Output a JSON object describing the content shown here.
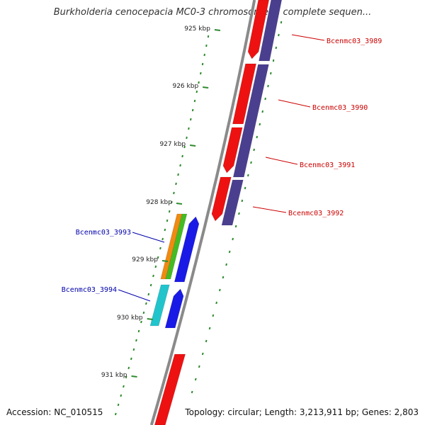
{
  "title": "Burkholderia cenocepacia MC0-3 chromosome 2, complete sequen...",
  "footer": {
    "accession": "Accession: NC_010515",
    "stats": "Topology: circular; Length: 3,213,911 bp; Genes: 2,803"
  },
  "colors": {
    "backbone": "#8a8a8a",
    "tick": "#2e8b2e",
    "gene_red": "#ee1111",
    "gene_navy": "#4a3f8f",
    "gene_blue": "#1a1ae6",
    "gene_orange": "#f08a10",
    "gene_green": "#44bb22",
    "gene_cyan": "#22c4cc",
    "label_red": "#cc0000",
    "label_blue": "#0000aa"
  },
  "ticks": [
    "925 kbp",
    "926 kbp",
    "927 kbp",
    "928 kbp",
    "929 kbp",
    "930 kbp",
    "931 kbp"
  ],
  "gene_labels": {
    "right": [
      "Bcenmc03_3989",
      "Bcenmc03_3990",
      "Bcenmc03_3991",
      "Bcenmc03_3992"
    ],
    "left": [
      "Bcenmc03_3993",
      "Bcenmc03_3994"
    ]
  }
}
